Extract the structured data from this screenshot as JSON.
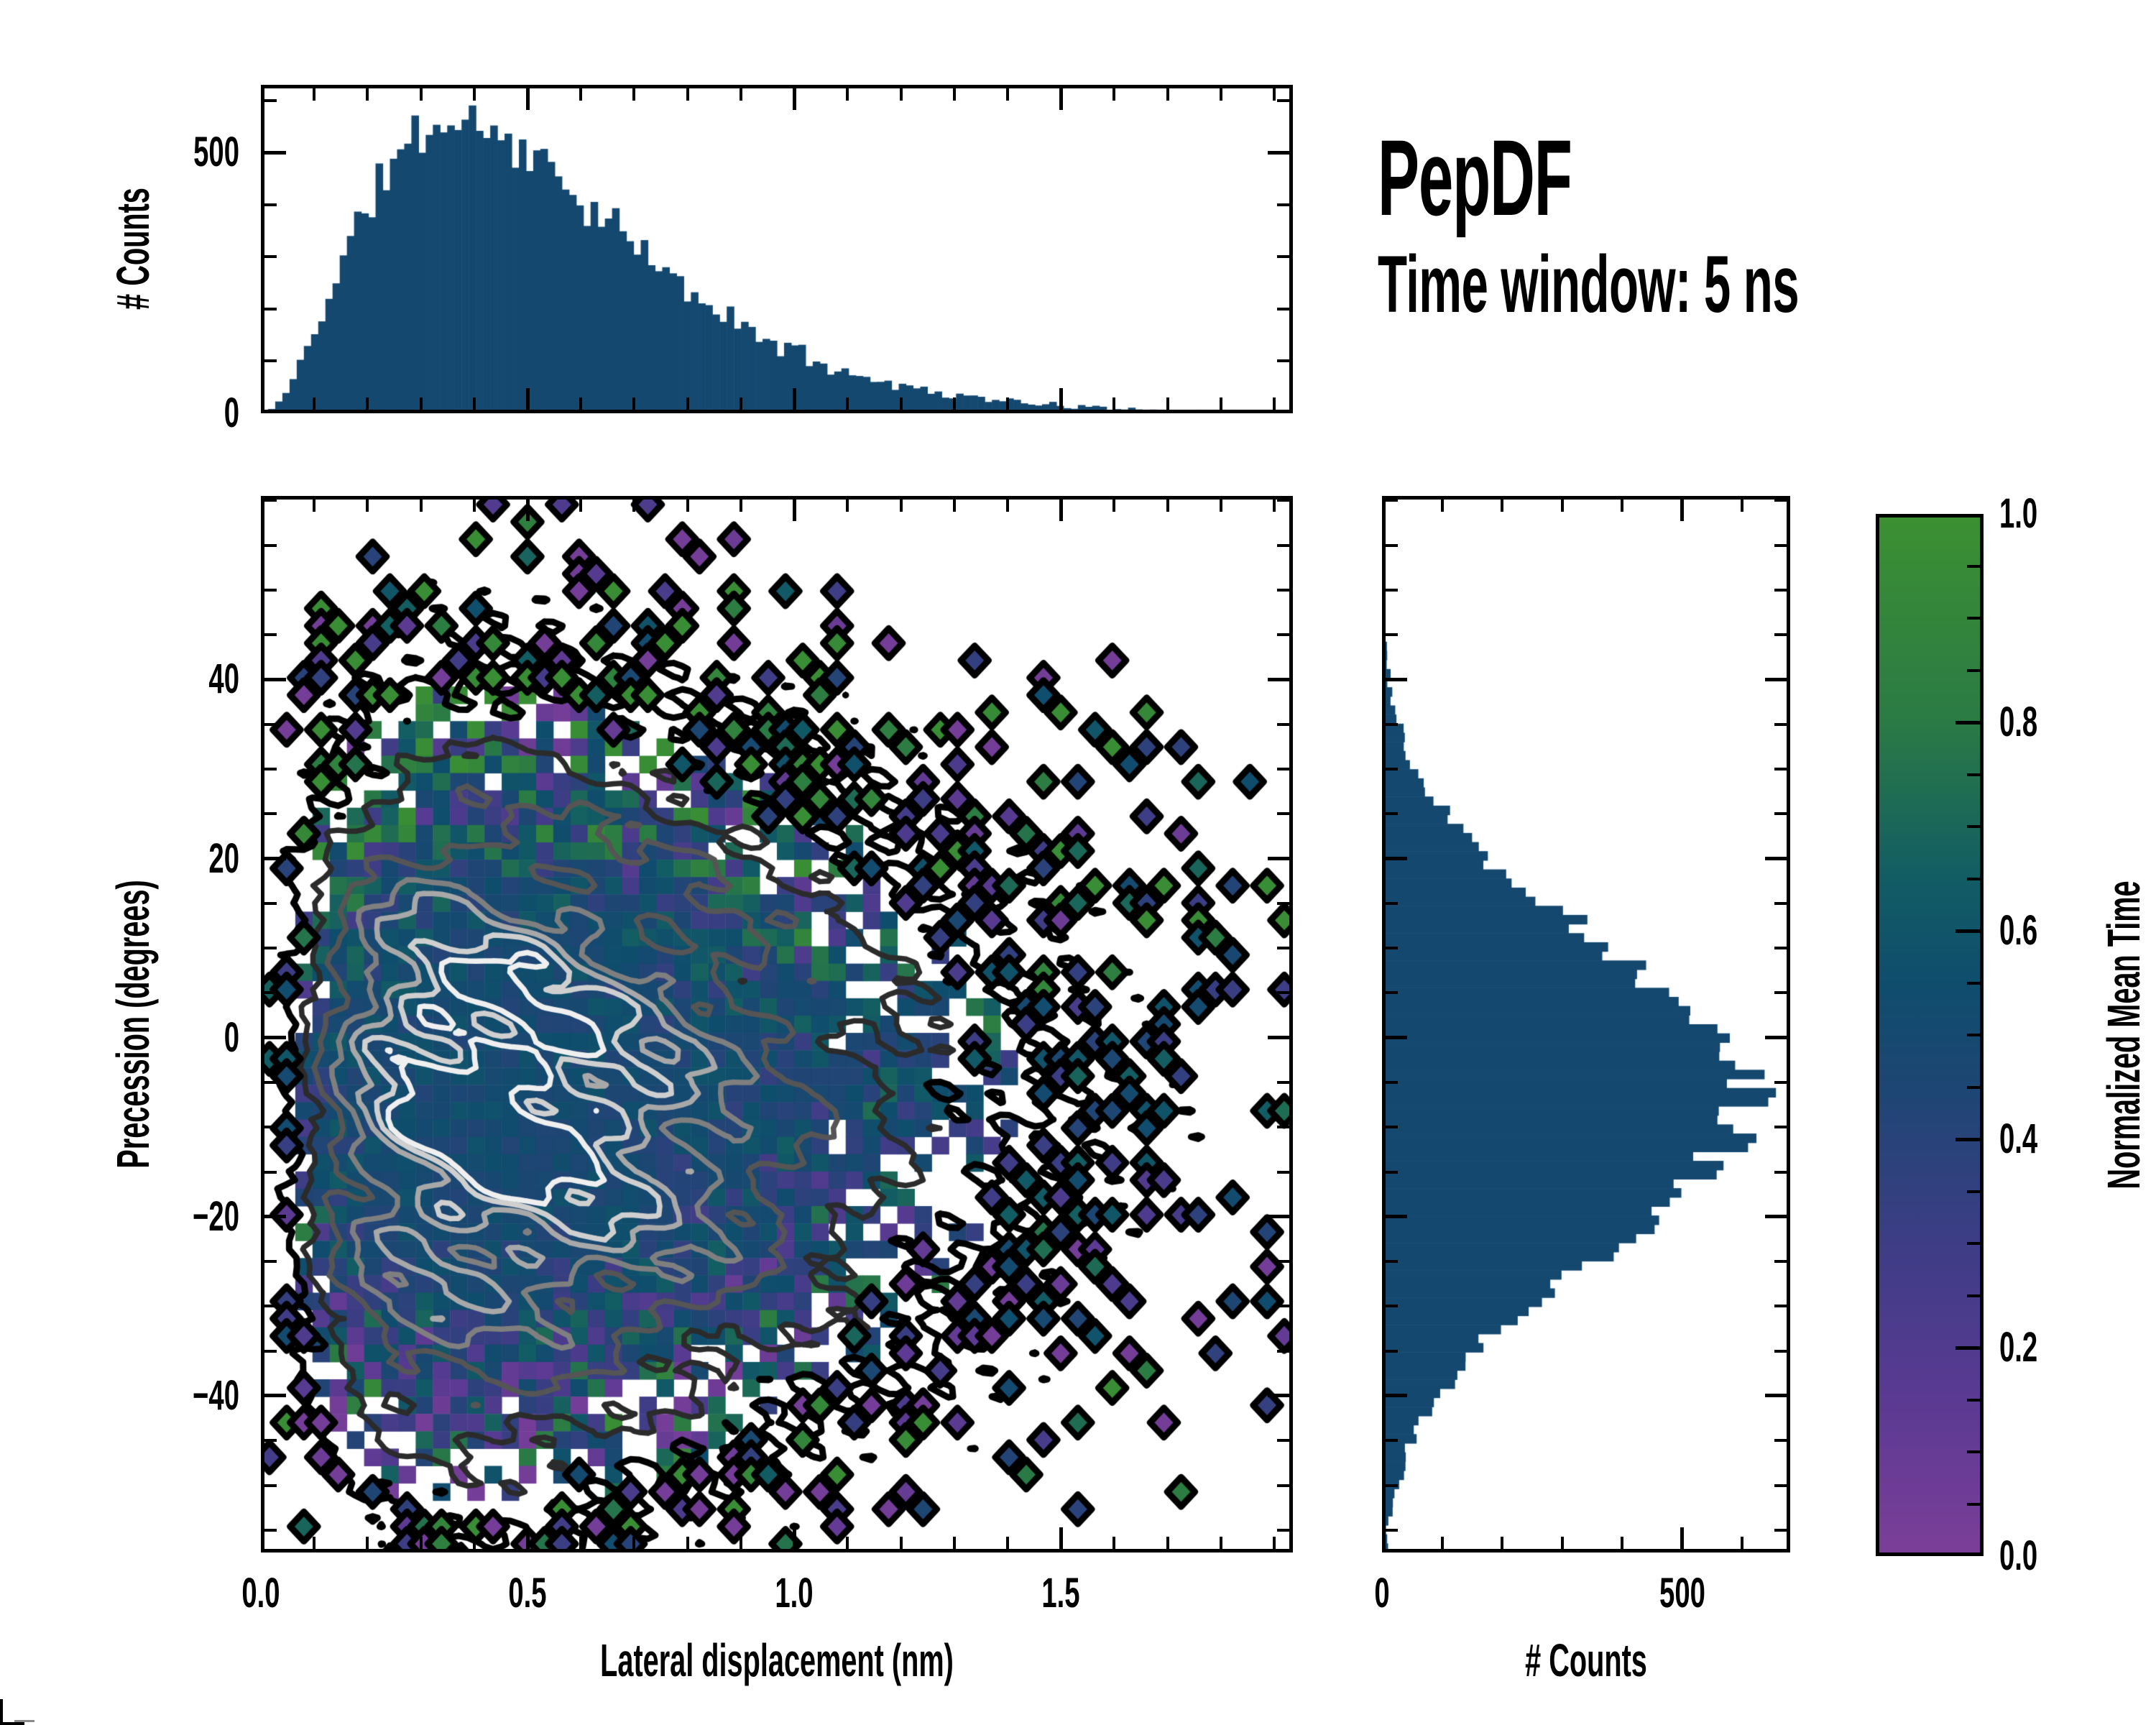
{
  "chart_data": {
    "type": "heatmap",
    "title": "PepDF",
    "subtitle": "Time window: 5 ns",
    "layout_hint": "central 2D histogram with top and right marginal histograms and a colorbar",
    "main": {
      "xlabel": "Lateral displacement (nm)",
      "ylabel": "Precession (degrees)",
      "xlim": [
        0,
        1.935
      ],
      "ylim": [
        -57.5,
        60.5
      ],
      "xticks": {
        "values": [
          0,
          0.5,
          1.0,
          1.5
        ],
        "labels": [
          "0.0",
          "0.5",
          "1.0",
          "1.5"
        ],
        "minor_step": 0.1
      },
      "yticks": {
        "values": [
          -40,
          -20,
          0,
          20,
          40
        ],
        "labels": [
          "−40",
          "−20",
          "0",
          "20",
          "40"
        ],
        "minor_step": 5
      },
      "grid": {
        "cols": 60,
        "rows": 61
      },
      "density": {
        "x_mode_nm": 0.42,
        "x_gamma_k": 2.6,
        "y_mean_deg": -7,
        "y_sigma_deg": 19
      },
      "value_field": "normalized mean time, ~0.5 (blue) in dense core, spread 0..1 (purple..green) at sparse edges",
      "contours": {
        "levels": [
          0.042,
          0.12,
          0.24,
          0.4,
          0.56,
          0.72,
          0.87
        ],
        "colors": [
          "#000000",
          "#2b2b2b",
          "#555555",
          "#7f7f7f",
          "#a8a8a8",
          "#cfcfcf",
          "#efefef"
        ]
      },
      "bottom_marker": {
        "x_nm": 0.375,
        "value": 0.12
      }
    },
    "top_histogram": {
      "ylabel": "# Counts",
      "bins": 144,
      "color": "#14486f",
      "ylim": [
        0,
        630
      ],
      "yticks": {
        "values": [
          0,
          500
        ],
        "labels": [
          "0",
          "500"
        ],
        "minor_step": 100
      },
      "peak": {
        "x_nm": 0.37,
        "counts": 560
      },
      "shape": {
        "family": "gamma",
        "mode_nm": 0.37,
        "k": 2.2
      }
    },
    "right_histogram": {
      "xlabel": "# Counts",
      "bins": 116,
      "color": "#14486f",
      "xlim": [
        0,
        680
      ],
      "xticks": {
        "values": [
          0,
          500
        ],
        "labels": [
          "0",
          "500"
        ],
        "minor_step": 100
      },
      "peak": {
        "y_deg": -7,
        "counts": 620
      },
      "shape": {
        "family": "gaussian",
        "mean_deg": -7,
        "sigma_deg": 17
      }
    },
    "colorbar": {
      "label": "Normalized Mean Time",
      "ticks": {
        "values": [
          0,
          0.2,
          0.4,
          0.6,
          0.8,
          1.0
        ],
        "labels": [
          "0.0",
          "0.2",
          "0.4",
          "0.6",
          "0.8",
          "1.0"
        ],
        "minor_step": 0.05
      },
      "stops": [
        [
          0,
          "#7b3e98"
        ],
        [
          0.15,
          "#5a3a92"
        ],
        [
          0.3,
          "#3d3d85"
        ],
        [
          0.45,
          "#1d4673"
        ],
        [
          0.55,
          "#0f4d6d"
        ],
        [
          0.65,
          "#125c64"
        ],
        [
          0.8,
          "#2a7a45"
        ],
        [
          1,
          "#3c9032"
        ]
      ]
    }
  }
}
